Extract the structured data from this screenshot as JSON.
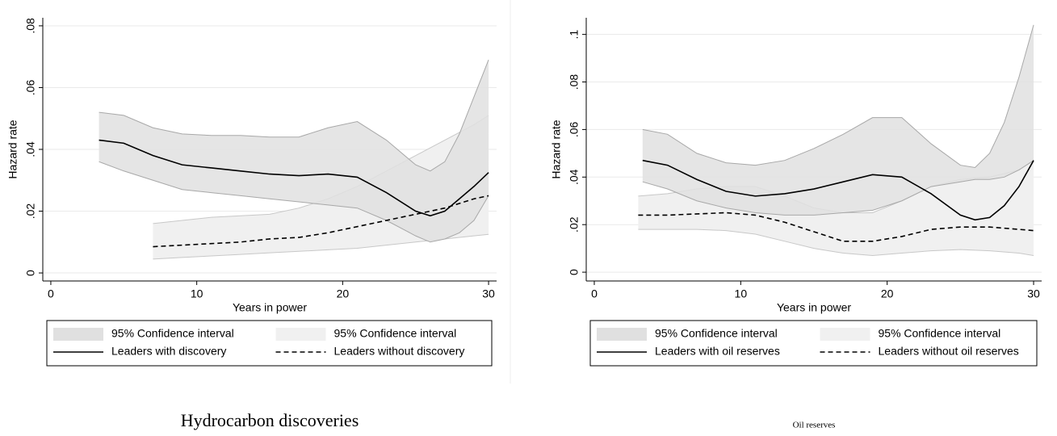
{
  "chart_data": [
    {
      "type": "line",
      "caption": "Hydrocarbon discoveries",
      "xlabel": "Years in power",
      "ylabel": "Hazard rate",
      "xlim": [
        -0.55,
        30.55
      ],
      "xticks": [
        0,
        10,
        20,
        30
      ],
      "ylim": [
        -0.0026,
        0.0826
      ],
      "yticks": [
        0,
        {
          "value": 0.02,
          "label": ".02"
        },
        {
          "value": 0.04,
          "label": ".04"
        },
        {
          "value": 0.06,
          "label": ".06"
        },
        {
          "value": 0.08,
          "label": ".08"
        }
      ],
      "grid": true,
      "legend": "bottom",
      "series": [
        {
          "name": "95% Confidence interval",
          "kind": "band",
          "color": "#e0e0e0",
          "edge": "#a8a8a8",
          "x": [
            3.3,
            5,
            7,
            9,
            11,
            13,
            15,
            17,
            19,
            21,
            23,
            25,
            26,
            27,
            28,
            29,
            30
          ],
          "upper": [
            0.052,
            0.051,
            0.047,
            0.045,
            0.0445,
            0.0445,
            0.044,
            0.044,
            0.047,
            0.049,
            0.043,
            0.035,
            0.033,
            0.036,
            0.045,
            0.057,
            0.069
          ],
          "lower": [
            0.036,
            0.033,
            0.03,
            0.027,
            0.026,
            0.025,
            0.024,
            0.023,
            0.022,
            0.021,
            0.017,
            0.012,
            0.01,
            0.011,
            0.013,
            0.017,
            0.025
          ]
        },
        {
          "name": "95% Confidence interval",
          "kind": "band",
          "color": "#f0f0f0",
          "edge": "#c8c8c8",
          "x": [
            7,
            9,
            11,
            13,
            15,
            17,
            19,
            21,
            23,
            25,
            27,
            29,
            30
          ],
          "upper": [
            0.016,
            0.017,
            0.018,
            0.0185,
            0.019,
            0.021,
            0.024,
            0.028,
            0.033,
            0.038,
            0.043,
            0.048,
            0.051
          ],
          "lower": [
            0.0045,
            0.005,
            0.0055,
            0.006,
            0.0065,
            0.007,
            0.0075,
            0.008,
            0.009,
            0.01,
            0.011,
            0.012,
            0.0125
          ]
        },
        {
          "name": "Leaders with discovery",
          "kind": "line",
          "color": "#000000",
          "dash": false,
          "x": [
            3.3,
            5,
            7,
            9,
            11,
            13,
            15,
            17,
            19,
            21,
            23,
            25,
            26,
            27,
            28,
            29,
            30
          ],
          "values": [
            0.043,
            0.042,
            0.038,
            0.035,
            0.034,
            0.033,
            0.032,
            0.0315,
            0.032,
            0.031,
            0.026,
            0.02,
            0.0185,
            0.02,
            0.024,
            0.028,
            0.0325
          ]
        },
        {
          "name": "Leaders without discovery",
          "kind": "line",
          "color": "#000000",
          "dash": true,
          "x": [
            7,
            9,
            11,
            13,
            15,
            17,
            19,
            21,
            23,
            25,
            27,
            29,
            30
          ],
          "values": [
            0.0085,
            0.009,
            0.0095,
            0.01,
            0.011,
            0.0115,
            0.013,
            0.015,
            0.017,
            0.019,
            0.021,
            0.024,
            0.025
          ]
        }
      ]
    },
    {
      "type": "line",
      "caption": "Oil reserves",
      "xlabel": "Years in power",
      "ylabel": "Hazard rate",
      "xlim": [
        -0.55,
        30.55
      ],
      "xticks": [
        0,
        10,
        20,
        30
      ],
      "ylim": [
        -0.0037,
        0.107
      ],
      "yticks": [
        0,
        {
          "value": 0.02,
          "label": ".02"
        },
        {
          "value": 0.04,
          "label": ".04"
        },
        {
          "value": 0.06,
          "label": ".06"
        },
        {
          "value": 0.08,
          "label": ".08"
        },
        {
          "value": 0.1,
          "label": ".1"
        }
      ],
      "grid": true,
      "legend": "bottom",
      "series": [
        {
          "name": "95% Confidence interval",
          "kind": "band",
          "color": "#e0e0e0",
          "edge": "#a8a8a8",
          "x": [
            3.3,
            5,
            7,
            9,
            11,
            13,
            15,
            17,
            19,
            21,
            23,
            25,
            26,
            27,
            28,
            29,
            30
          ],
          "upper": [
            0.06,
            0.058,
            0.05,
            0.046,
            0.045,
            0.047,
            0.052,
            0.058,
            0.065,
            0.065,
            0.054,
            0.045,
            0.044,
            0.05,
            0.063,
            0.082,
            0.104
          ],
          "lower": [
            0.038,
            0.035,
            0.03,
            0.027,
            0.025,
            0.024,
            0.024,
            0.025,
            0.026,
            0.03,
            0.036,
            0.038,
            0.039,
            0.039,
            0.04,
            0.043,
            0.047
          ]
        },
        {
          "name": "95% Confidence interval",
          "kind": "band",
          "color": "#f0f0f0",
          "edge": "#c8c8c8",
          "x": [
            3,
            5,
            7,
            9,
            11,
            13,
            15,
            17,
            19,
            21,
            23,
            25,
            27,
            29,
            30
          ],
          "upper": [
            0.032,
            0.033,
            0.035,
            0.036,
            0.036,
            0.032,
            0.027,
            0.025,
            0.025,
            0.03,
            0.036,
            0.039,
            0.04,
            0.043,
            0.047
          ],
          "lower": [
            0.018,
            0.018,
            0.018,
            0.0175,
            0.016,
            0.013,
            0.01,
            0.008,
            0.007,
            0.008,
            0.009,
            0.0095,
            0.009,
            0.008,
            0.007
          ]
        },
        {
          "name": "Leaders with oil reserves",
          "kind": "line",
          "color": "#000000",
          "dash": false,
          "x": [
            3.3,
            5,
            7,
            9,
            11,
            13,
            15,
            17,
            19,
            21,
            23,
            25,
            26,
            27,
            28,
            29,
            30
          ],
          "values": [
            0.047,
            0.045,
            0.039,
            0.034,
            0.032,
            0.033,
            0.035,
            0.038,
            0.041,
            0.04,
            0.033,
            0.024,
            0.022,
            0.023,
            0.028,
            0.036,
            0.047
          ]
        },
        {
          "name": "Leaders without oil reserves",
          "kind": "line",
          "color": "#000000",
          "dash": true,
          "x": [
            3,
            5,
            7,
            9,
            11,
            13,
            15,
            17,
            19,
            21,
            23,
            25,
            27,
            29,
            30
          ],
          "values": [
            0.024,
            0.024,
            0.0245,
            0.025,
            0.024,
            0.021,
            0.017,
            0.013,
            0.013,
            0.015,
            0.018,
            0.019,
            0.019,
            0.018,
            0.0175
          ]
        }
      ]
    }
  ]
}
